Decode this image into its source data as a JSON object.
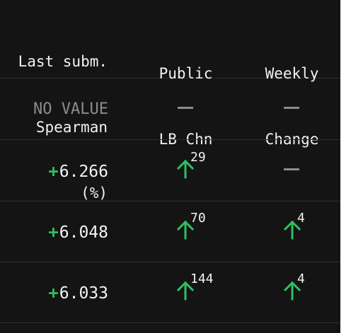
{
  "header": {
    "col1_lines": [
      "Last subm.",
      "Spearman",
      "(%)"
    ],
    "col2_lines": [
      "Public",
      "LB Chn"
    ],
    "col3_lines": [
      "Weekly",
      "Change"
    ]
  },
  "rows": [
    {
      "score": "NO VALUE",
      "public_lb_change": null,
      "weekly_change": null
    },
    {
      "score": "6.266",
      "public_lb_change": "29",
      "weekly_change": null
    },
    {
      "score": "6.048",
      "public_lb_change": "70",
      "weekly_change": "4"
    },
    {
      "score": "6.033",
      "public_lb_change": "144",
      "weekly_change": "4"
    }
  ],
  "symbols": {
    "plus": "+",
    "up_icon": "arrow-up-icon",
    "no_change_icon": "dash-icon"
  },
  "colors": {
    "background": "#141414",
    "text": "#f2f2f2",
    "muted": "#8c8c8c",
    "positive": "#2fbf5f",
    "divider": "#2e2e2e"
  }
}
